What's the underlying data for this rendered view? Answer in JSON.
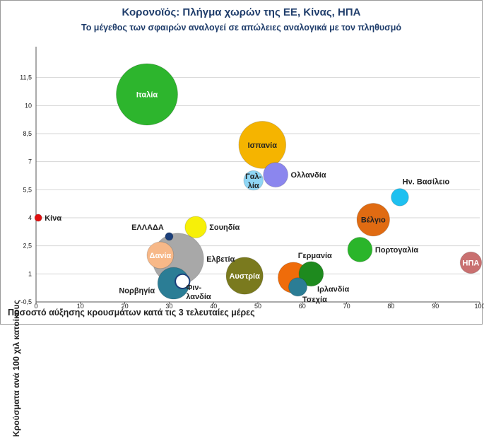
{
  "chart_data": {
    "type": "bubble",
    "title": "Κορονοϊός: Πλήγμα χωρών της ΕΕ, Κίνας, ΗΠΑ",
    "subtitle": "Το μέγεθος των σφαιρών αναλογεί σε απώλειες αναλογικά με τον πληθυσμό",
    "xlabel": "Ποσοστό αύξησης κρουσμάτων κατά τις 3 τελευταίες μέρες",
    "ylabel": "Κρούσματα ανά 100 χιλ κατοίκους",
    "xlim": [
      0,
      100
    ],
    "ylim": [
      -0.5,
      13
    ],
    "xticks": [
      "0",
      "10",
      "20",
      "30",
      "40",
      "50",
      "60",
      "70",
      "80",
      "90",
      "100"
    ],
    "yticks": [
      "-0,5",
      "1",
      "2,5",
      "4",
      "5,5",
      "7",
      "8,5",
      "10",
      "11,5"
    ],
    "ytick_values": [
      -0.5,
      1,
      2.5,
      4,
      5.5,
      7,
      8.5,
      10,
      11.5
    ],
    "points": [
      {
        "name": "Ιταλία",
        "x": 25,
        "y": 10.6,
        "size": 30,
        "color": "#2db52d",
        "label_pos": "center",
        "label_color": "#ffffff"
      },
      {
        "name": "Ισπανία",
        "x": 51,
        "y": 7.9,
        "size": 23,
        "color": "#f5b400",
        "label_pos": "center",
        "label_color": "#222222"
      },
      {
        "name": "Ολλανδία",
        "x": 54,
        "y": 6.3,
        "size": 12,
        "color": "#8b86ee",
        "label_pos": "right",
        "label_color": "#222222"
      },
      {
        "name": "Γαλ-\nλία",
        "x": 49,
        "y": 6.0,
        "size": 9.5,
        "color": "#8fd6f5",
        "label_pos": "center",
        "label_color": "#222222"
      },
      {
        "name": "Κίνα",
        "x": 0.5,
        "y": 4.0,
        "size": 3.5,
        "color": "#e01010",
        "label_pos": "right",
        "label_color": "#222222"
      },
      {
        "name": "ΕΛΛΑΔΑ",
        "x": 30,
        "y": 3.0,
        "size": 3.8,
        "color": "#1b3f7a",
        "label_pos": "top-left",
        "label_color": "#222222"
      },
      {
        "name": "Σουηδία",
        "x": 36,
        "y": 3.5,
        "size": 10.5,
        "color": "#f7f008",
        "label_pos": "right",
        "label_color": "#222222"
      },
      {
        "name": "Ελβετία",
        "x": 32,
        "y": 1.8,
        "size": 25,
        "color": "#a8a8a8",
        "label_pos": "right",
        "label_color": "#222222"
      },
      {
        "name": "Δανία",
        "x": 28,
        "y": 2.0,
        "size": 13,
        "color": "#f7b888",
        "label_pos": "center",
        "label_color": "#ffffff"
      },
      {
        "name": "Νορβηγία",
        "x": 31,
        "y": 0.5,
        "size": 15.5,
        "color": "#2b7d95",
        "label_pos": "left",
        "label_color": "#222222"
      },
      {
        "name": "Φιν-\nλανδία",
        "x": 33,
        "y": 0.6,
        "size": 7,
        "color": "#ffffff",
        "label_pos": "bottom-right",
        "label_color": "#222222"
      },
      {
        "name": "Αυστρία",
        "x": 47,
        "y": 0.9,
        "size": 18,
        "color": "#7a7a1e",
        "label_pos": "center",
        "label_color": "#ffffff"
      },
      {
        "name": "Γερμανία",
        "x": 58,
        "y": 0.8,
        "size": 15,
        "color": "#ef6c0a",
        "label_pos": "top-right",
        "label_color": "#222222"
      },
      {
        "name": "Ιρλανδία",
        "x": 62,
        "y": 1.0,
        "size": 12,
        "color": "#1e8a1e",
        "label_pos": "bottom-right",
        "label_color": "#222222"
      },
      {
        "name": "Τσεχία",
        "x": 59,
        "y": 0.3,
        "size": 9,
        "color": "#2b7d95",
        "label_pos": "bottom-right",
        "label_color": "#222222"
      },
      {
        "name": "Βέλγιο",
        "x": 76,
        "y": 3.9,
        "size": 16,
        "color": "#e06b12",
        "label_pos": "center",
        "label_color": "#222222"
      },
      {
        "name": "Πορτογαλία",
        "x": 73,
        "y": 2.3,
        "size": 12,
        "color": "#2ab52a",
        "label_pos": "right",
        "label_color": "#222222"
      },
      {
        "name": "Ην. Βασίλειο",
        "x": 82,
        "y": 5.1,
        "size": 8.5,
        "color": "#1ec0f0",
        "label_pos": "top-right",
        "label_color": "#222222"
      },
      {
        "name": "ΗΠΑ",
        "x": 98,
        "y": 1.6,
        "size": 10.5,
        "color": "#c97070",
        "label_pos": "center",
        "label_color": "#ffffff"
      }
    ]
  }
}
